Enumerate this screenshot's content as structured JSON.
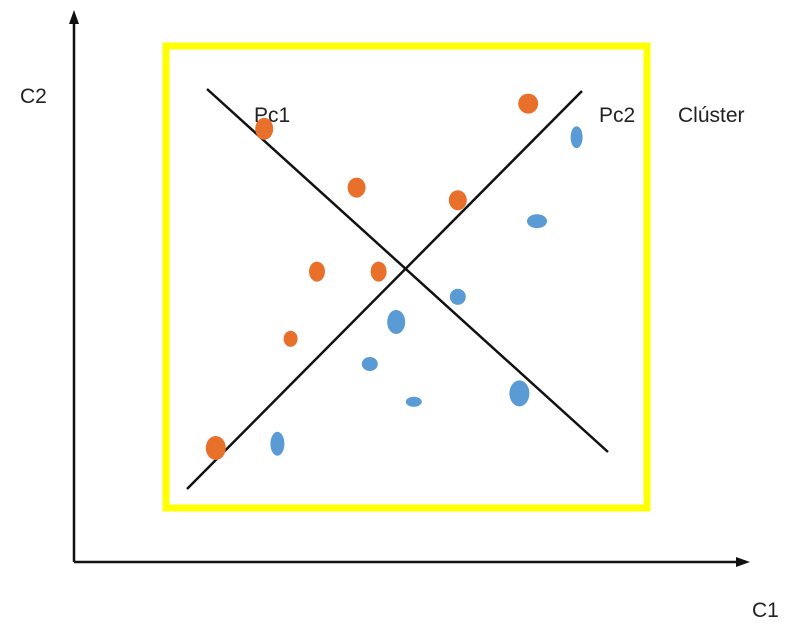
{
  "labels": {
    "y_axis": "C2",
    "x_axis": "C1",
    "line_1": "Pc1",
    "line_2": "Pc2",
    "box": "Clúster"
  },
  "colors": {
    "axis": "#111111",
    "box": "#ffff00",
    "line": "#111111",
    "group_a": "#e8702a",
    "group_b": "#5b9bd5"
  },
  "points": {
    "group_a": [
      {
        "x": 0.18,
        "y": 0.86
      },
      {
        "x": 0.39,
        "y": 0.72
      },
      {
        "x": 0.62,
        "y": 0.69
      },
      {
        "x": 0.3,
        "y": 0.52
      },
      {
        "x": 0.44,
        "y": 0.52
      },
      {
        "x": 0.24,
        "y": 0.36
      },
      {
        "x": 0.07,
        "y": 0.1
      },
      {
        "x": 0.78,
        "y": 0.92
      }
    ],
    "group_b": [
      {
        "x": 0.89,
        "y": 0.84
      },
      {
        "x": 0.8,
        "y": 0.64
      },
      {
        "x": 0.62,
        "y": 0.46
      },
      {
        "x": 0.48,
        "y": 0.4
      },
      {
        "x": 0.42,
        "y": 0.3
      },
      {
        "x": 0.52,
        "y": 0.21
      },
      {
        "x": 0.76,
        "y": 0.23
      },
      {
        "x": 0.21,
        "y": 0.11
      }
    ]
  }
}
